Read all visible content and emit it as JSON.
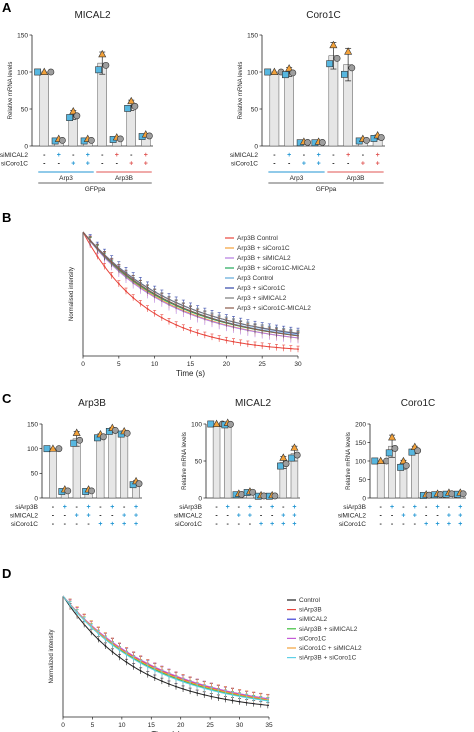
{
  "colors": {
    "bar_fill": "#e6e6e6",
    "square": "#57b7e0",
    "triangle": "#f2a13a",
    "circle": "#9e9e9e",
    "blue": "#2196d3",
    "red": "#e05553"
  },
  "panel_a": {
    "letter": "A",
    "row_labels": [
      "siMICAL2",
      "siCoro1C"
    ],
    "sirna_row1": [
      "-",
      "+",
      "-",
      "+",
      "-",
      "+",
      "-",
      "+"
    ],
    "sirna_row2": [
      "-",
      "-",
      "+",
      "+",
      "-",
      "-",
      "+",
      "+"
    ],
    "group_labels": [
      "Arp3",
      "Arp3B"
    ],
    "footer": "GFPpa"
  },
  "panel_b": {
    "letter": "B"
  },
  "panel_c": {
    "letter": "C",
    "row_labels": [
      "siArp3B",
      "siMICAL2",
      "siCoro1C"
    ],
    "sirna_row1": [
      "-",
      "+",
      "-",
      "+",
      "-",
      "+",
      "-",
      "+"
    ],
    "sirna_row2": [
      "-",
      "-",
      "+",
      "+",
      "-",
      "-",
      "+",
      "+"
    ],
    "sirna_row3": [
      "-",
      "-",
      "-",
      "-",
      "+",
      "+",
      "+",
      "+"
    ]
  },
  "panel_d": {
    "letter": "D"
  },
  "chart_data": [
    {
      "type": "bar",
      "title": "MICAL2",
      "ylabel": "Relative mRNA levels",
      "ylim": [
        0,
        150
      ],
      "yticks": [
        "0",
        "50",
        "100",
        "150"
      ],
      "values": [
        100,
        8,
        42,
        8,
        112,
        10,
        55,
        14
      ],
      "errors": [
        0,
        2,
        6,
        2,
        15,
        2,
        7,
        2
      ]
    },
    {
      "type": "bar",
      "title": "Coro1C",
      "ylabel": "Relative mRNA levels",
      "ylim": [
        0,
        150
      ],
      "yticks": [
        "0",
        "50",
        "100",
        "150"
      ],
      "values": [
        100,
        100,
        5,
        5,
        122,
        110,
        8,
        12
      ],
      "errors": [
        0,
        6,
        1,
        1,
        18,
        22,
        2,
        3
      ]
    },
    {
      "type": "line",
      "xlabel": "Time (s)",
      "ylabel": "Normalised intensity",
      "xlim": [
        0,
        30
      ],
      "ylim": [
        0,
        1
      ],
      "xticks": [
        "0",
        "5",
        "10",
        "15",
        "20",
        "25",
        "30"
      ],
      "series": [
        {
          "name": "Arp3B Control",
          "color": "#e8453c",
          "tau": 9.0,
          "plateau": 0.02
        },
        {
          "name": "Arp3B + siCoro1C",
          "color": "#f2a13a",
          "tau": 12.5,
          "plateau": 0.06
        },
        {
          "name": "Arp3B + siMICAL2",
          "color": "#b57be0",
          "tau": 12.0,
          "plateau": 0.07
        },
        {
          "name": "Arp3B + siCoro1C-MICAL2",
          "color": "#21a85b",
          "tau": 12.5,
          "plateau": 0.08
        },
        {
          "name": "Arp3 Control",
          "color": "#5fa8d8",
          "tau": 12.8,
          "plateau": 0.08
        },
        {
          "name": "Arp3 + siCoro1C",
          "color": "#3346a8",
          "tau": 13.5,
          "plateau": 0.08
        },
        {
          "name": "Arp3 + siMICAL2",
          "color": "#7a7a7a",
          "tau": 13.2,
          "plateau": 0.09
        },
        {
          "name": "Arp3 + siCoro1C-MICAL2",
          "color": "#8a5a4a",
          "tau": 13.0,
          "plateau": 0.07
        }
      ]
    },
    {
      "type": "bar",
      "title": "Arp3B",
      "ylabel": "",
      "ylim": [
        0,
        150
      ],
      "yticks": [
        "0",
        "50",
        "100",
        "150"
      ],
      "values": [
        100,
        15,
        120,
        15,
        125,
        138,
        132,
        30
      ],
      "errors": [
        0,
        3,
        15,
        3,
        5,
        5,
        4,
        5
      ]
    },
    {
      "type": "bar",
      "title": "MICAL2",
      "ylabel": "Relative mRNA levels",
      "ylim": [
        0,
        100
      ],
      "yticks": [
        "0",
        "50",
        "100"
      ],
      "values": [
        100,
        100,
        5,
        8,
        3,
        3,
        48,
        60
      ],
      "errors": [
        0,
        2,
        1,
        1,
        1,
        1,
        8,
        10
      ]
    },
    {
      "type": "bar",
      "title": "Coro1C",
      "ylabel": "Relative mRNA levels",
      "ylim": [
        0,
        200
      ],
      "yticks": [
        "0",
        "50",
        "100",
        "150",
        "200"
      ],
      "values": [
        100,
        140,
        90,
        130,
        8,
        10,
        12,
        12
      ],
      "errors": [
        0,
        30,
        12,
        10,
        2,
        2,
        3,
        3
      ]
    },
    {
      "type": "line",
      "xlabel": "Time (s)",
      "ylabel": "Normalized intensity",
      "xlim": [
        0,
        35
      ],
      "ylim": [
        0,
        1
      ],
      "xticks": [
        "0",
        "5",
        "10",
        "15",
        "20",
        "25",
        "30",
        "35"
      ],
      "series": [
        {
          "name": "Control",
          "color": "#222222",
          "tau": 13.0,
          "plateau": 0.03
        },
        {
          "name": "siArp3B",
          "color": "#e8453c",
          "tau": 16.5,
          "plateau": 0.03
        },
        {
          "name": "siMICAL2",
          "color": "#3d3dd6",
          "tau": 16.0,
          "plateau": 0.03
        },
        {
          "name": "siArp3B + siMICAL2",
          "color": "#3cbf3c",
          "tau": 15.8,
          "plateau": 0.03
        },
        {
          "name": "siCoro1C",
          "color": "#c45ad6",
          "tau": 16.8,
          "plateau": 0.03
        },
        {
          "name": "siCoro1C + siMICAL2",
          "color": "#f2a13a",
          "tau": 16.2,
          "plateau": 0.03
        },
        {
          "name": "siArp3B + siCoro1C",
          "color": "#5fd0e8",
          "tau": 15.5,
          "plateau": 0.03
        }
      ]
    }
  ]
}
